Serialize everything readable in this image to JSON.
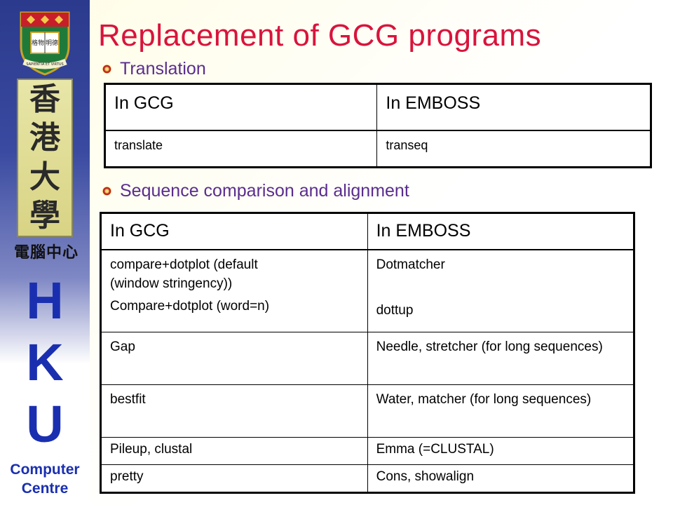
{
  "sidebar": {
    "crest_motto": "SAPIENTIA ET VIRTUS",
    "chinese_chars": [
      "香",
      "港",
      "大",
      "學"
    ],
    "computer_centre_chinese": "電腦中心",
    "hku_letters": [
      "H",
      "K",
      "U"
    ],
    "centre_name_line1": "Computer",
    "centre_name_line2": "Centre"
  },
  "title": "Replacement of GCG programs",
  "sections": [
    {
      "heading": "Translation",
      "table": {
        "headers": [
          "In GCG",
          "In EMBOSS"
        ],
        "rows": [
          [
            "translate",
            "transeq"
          ]
        ]
      }
    },
    {
      "heading": "Sequence comparison and alignment",
      "table": {
        "headers": [
          "In GCG",
          "In EMBOSS"
        ],
        "row1_gcg_line1": "compare+dotplot (default",
        "row1_gcg_line2": "(window stringency))",
        "row1_gcg_line3": "Compare+dotplot (word=n)",
        "row1_emboss_line1": "Dotmatcher",
        "row1_emboss_line2": "dottup",
        "rows": [
          [
            "Gap",
            "Needle, stretcher (for long sequences)"
          ],
          [
            "bestfit",
            "Water, matcher (for long sequences)"
          ],
          [
            "Pileup, clustal",
            "Emma (=CLUSTAL)"
          ],
          [
            "pretty",
            "Cons, showalign"
          ]
        ]
      }
    }
  ],
  "colors": {
    "title": "#d8143c",
    "heading": "#5a2d8e",
    "hku_blue": "#1a2fb0",
    "sidebar_top": "#2b3a8c"
  }
}
